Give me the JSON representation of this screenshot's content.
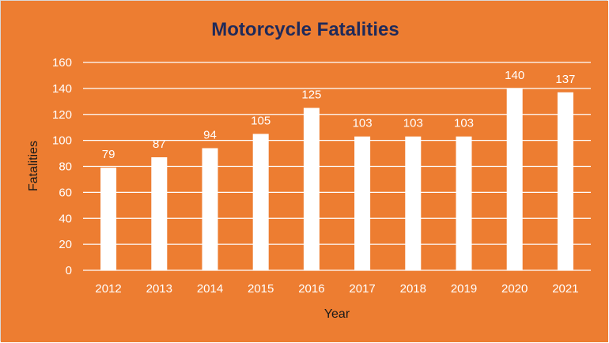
{
  "colors": {
    "background": "#ED7D31",
    "bar": "#FFFFFF",
    "grid": "#FFFFFF",
    "text": "#FFFFFF",
    "title": "#1F2A5A",
    "axis_title": "#1A1A1A"
  },
  "chart_data": {
    "type": "bar",
    "title": "Motorcycle Fatalities",
    "xlabel": "Year",
    "ylabel": "Fatalities",
    "categories": [
      "2012",
      "2013",
      "2014",
      "2015",
      "2016",
      "2017",
      "2018",
      "2019",
      "2020",
      "2021"
    ],
    "values": [
      79,
      87,
      94,
      105,
      125,
      103,
      103,
      103,
      140,
      137
    ],
    "ylim": [
      0,
      160
    ],
    "yticks": [
      0,
      20,
      40,
      60,
      80,
      100,
      120,
      140,
      160
    ],
    "grid": true,
    "legend": "none",
    "data_labels": true
  }
}
